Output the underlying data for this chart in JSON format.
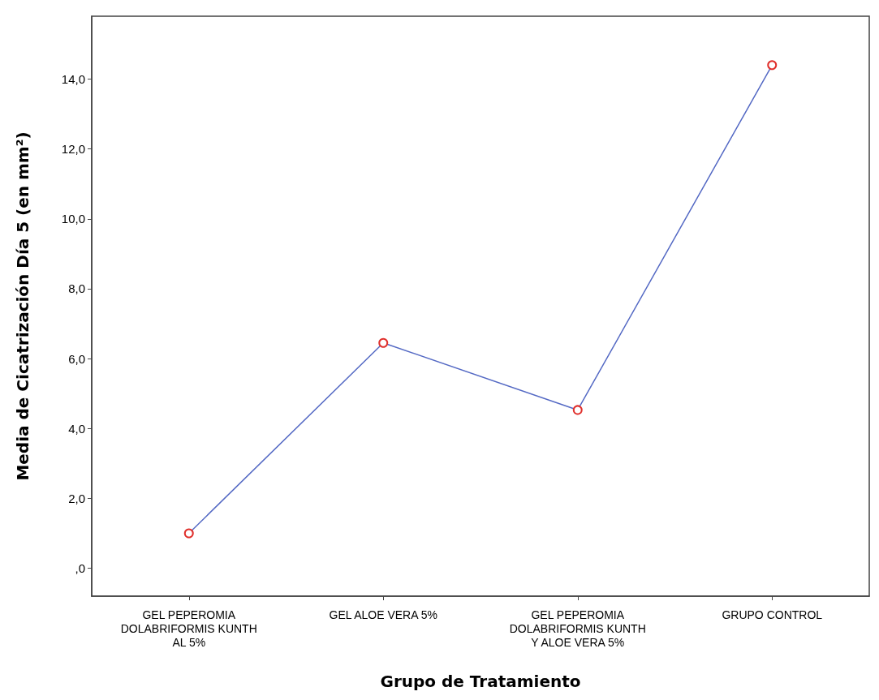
{
  "chart_data": {
    "type": "line",
    "xlabel": "Grupo de Tratamiento",
    "ylabel": "Media de Cicatrización Día 5 (en mm²)",
    "categories": [
      "GEL PEPEROMIA\nDOLABRIFORMIS KUNTH\nAL 5%",
      "GEL ALOE VERA 5%",
      "GEL PEPEROMIA\nDOLABRIFORMIS KUNTH\nY ALOE VERA 5%",
      "GRUPO CONTROL"
    ],
    "series": [
      {
        "color": "#5469c4",
        "colors": [
          "#e0302c",
          "#e0302c",
          "#e0302c",
          "#e0302c"
        ],
        "values": [
          1.0,
          6.45,
          4.53,
          14.4
        ]
      }
    ],
    "ylim": [
      -0.8,
      15.8
    ],
    "yticks": [
      {
        "value": 0,
        "label": ",0"
      },
      {
        "value": 2,
        "label": "2,0"
      },
      {
        "value": 4,
        "label": "4,0"
      },
      {
        "value": 6,
        "label": "6,0"
      },
      {
        "value": 8,
        "label": "8,0"
      },
      {
        "value": 10,
        "label": "10,0"
      },
      {
        "value": 12,
        "label": "12,0"
      },
      {
        "value": 14,
        "label": "14,0"
      }
    ],
    "marker": "circle",
    "line_style": "solid"
  }
}
